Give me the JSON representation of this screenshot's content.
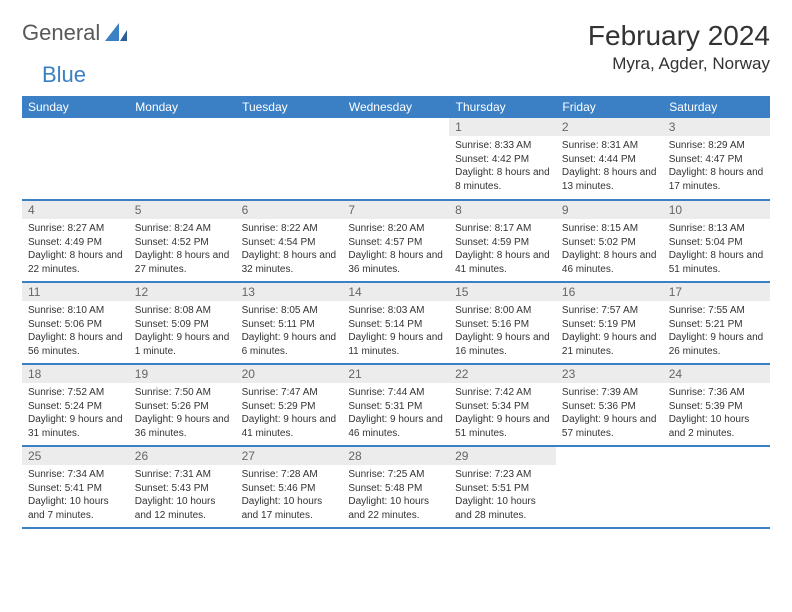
{
  "logo": {
    "part1": "General",
    "part2": "Blue"
  },
  "title": "February 2024",
  "location": "Myra, Agder, Norway",
  "weekdays": [
    "Sunday",
    "Monday",
    "Tuesday",
    "Wednesday",
    "Thursday",
    "Friday",
    "Saturday"
  ],
  "colors": {
    "primary": "#3b7fc4",
    "daynum_bg": "#ececec",
    "text": "#333333",
    "logo_gray": "#595959"
  },
  "weeks": [
    [
      null,
      null,
      null,
      null,
      {
        "n": "1",
        "sr": "Sunrise: 8:33 AM",
        "ss": "Sunset: 4:42 PM",
        "dl": "Daylight: 8 hours and 8 minutes."
      },
      {
        "n": "2",
        "sr": "Sunrise: 8:31 AM",
        "ss": "Sunset: 4:44 PM",
        "dl": "Daylight: 8 hours and 13 minutes."
      },
      {
        "n": "3",
        "sr": "Sunrise: 8:29 AM",
        "ss": "Sunset: 4:47 PM",
        "dl": "Daylight: 8 hours and 17 minutes."
      }
    ],
    [
      {
        "n": "4",
        "sr": "Sunrise: 8:27 AM",
        "ss": "Sunset: 4:49 PM",
        "dl": "Daylight: 8 hours and 22 minutes."
      },
      {
        "n": "5",
        "sr": "Sunrise: 8:24 AM",
        "ss": "Sunset: 4:52 PM",
        "dl": "Daylight: 8 hours and 27 minutes."
      },
      {
        "n": "6",
        "sr": "Sunrise: 8:22 AM",
        "ss": "Sunset: 4:54 PM",
        "dl": "Daylight: 8 hours and 32 minutes."
      },
      {
        "n": "7",
        "sr": "Sunrise: 8:20 AM",
        "ss": "Sunset: 4:57 PM",
        "dl": "Daylight: 8 hours and 36 minutes."
      },
      {
        "n": "8",
        "sr": "Sunrise: 8:17 AM",
        "ss": "Sunset: 4:59 PM",
        "dl": "Daylight: 8 hours and 41 minutes."
      },
      {
        "n": "9",
        "sr": "Sunrise: 8:15 AM",
        "ss": "Sunset: 5:02 PM",
        "dl": "Daylight: 8 hours and 46 minutes."
      },
      {
        "n": "10",
        "sr": "Sunrise: 8:13 AM",
        "ss": "Sunset: 5:04 PM",
        "dl": "Daylight: 8 hours and 51 minutes."
      }
    ],
    [
      {
        "n": "11",
        "sr": "Sunrise: 8:10 AM",
        "ss": "Sunset: 5:06 PM",
        "dl": "Daylight: 8 hours and 56 minutes."
      },
      {
        "n": "12",
        "sr": "Sunrise: 8:08 AM",
        "ss": "Sunset: 5:09 PM",
        "dl": "Daylight: 9 hours and 1 minute."
      },
      {
        "n": "13",
        "sr": "Sunrise: 8:05 AM",
        "ss": "Sunset: 5:11 PM",
        "dl": "Daylight: 9 hours and 6 minutes."
      },
      {
        "n": "14",
        "sr": "Sunrise: 8:03 AM",
        "ss": "Sunset: 5:14 PM",
        "dl": "Daylight: 9 hours and 11 minutes."
      },
      {
        "n": "15",
        "sr": "Sunrise: 8:00 AM",
        "ss": "Sunset: 5:16 PM",
        "dl": "Daylight: 9 hours and 16 minutes."
      },
      {
        "n": "16",
        "sr": "Sunrise: 7:57 AM",
        "ss": "Sunset: 5:19 PM",
        "dl": "Daylight: 9 hours and 21 minutes."
      },
      {
        "n": "17",
        "sr": "Sunrise: 7:55 AM",
        "ss": "Sunset: 5:21 PM",
        "dl": "Daylight: 9 hours and 26 minutes."
      }
    ],
    [
      {
        "n": "18",
        "sr": "Sunrise: 7:52 AM",
        "ss": "Sunset: 5:24 PM",
        "dl": "Daylight: 9 hours and 31 minutes."
      },
      {
        "n": "19",
        "sr": "Sunrise: 7:50 AM",
        "ss": "Sunset: 5:26 PM",
        "dl": "Daylight: 9 hours and 36 minutes."
      },
      {
        "n": "20",
        "sr": "Sunrise: 7:47 AM",
        "ss": "Sunset: 5:29 PM",
        "dl": "Daylight: 9 hours and 41 minutes."
      },
      {
        "n": "21",
        "sr": "Sunrise: 7:44 AM",
        "ss": "Sunset: 5:31 PM",
        "dl": "Daylight: 9 hours and 46 minutes."
      },
      {
        "n": "22",
        "sr": "Sunrise: 7:42 AM",
        "ss": "Sunset: 5:34 PM",
        "dl": "Daylight: 9 hours and 51 minutes."
      },
      {
        "n": "23",
        "sr": "Sunrise: 7:39 AM",
        "ss": "Sunset: 5:36 PM",
        "dl": "Daylight: 9 hours and 57 minutes."
      },
      {
        "n": "24",
        "sr": "Sunrise: 7:36 AM",
        "ss": "Sunset: 5:39 PM",
        "dl": "Daylight: 10 hours and 2 minutes."
      }
    ],
    [
      {
        "n": "25",
        "sr": "Sunrise: 7:34 AM",
        "ss": "Sunset: 5:41 PM",
        "dl": "Daylight: 10 hours and 7 minutes."
      },
      {
        "n": "26",
        "sr": "Sunrise: 7:31 AM",
        "ss": "Sunset: 5:43 PM",
        "dl": "Daylight: 10 hours and 12 minutes."
      },
      {
        "n": "27",
        "sr": "Sunrise: 7:28 AM",
        "ss": "Sunset: 5:46 PM",
        "dl": "Daylight: 10 hours and 17 minutes."
      },
      {
        "n": "28",
        "sr": "Sunrise: 7:25 AM",
        "ss": "Sunset: 5:48 PM",
        "dl": "Daylight: 10 hours and 22 minutes."
      },
      {
        "n": "29",
        "sr": "Sunrise: 7:23 AM",
        "ss": "Sunset: 5:51 PM",
        "dl": "Daylight: 10 hours and 28 minutes."
      },
      null,
      null
    ]
  ]
}
